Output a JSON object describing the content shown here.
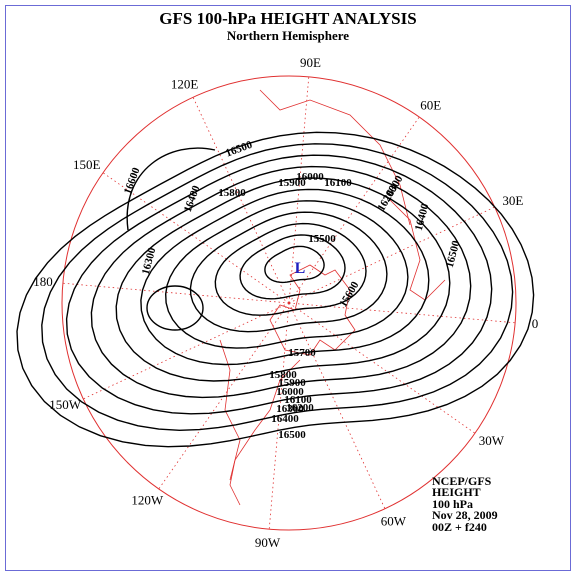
{
  "title": "GFS 100-hPa HEIGHT ANALYSIS",
  "subtitle": "Northern Hemisphere",
  "longitude_labels": [
    "0",
    "30E",
    "60E",
    "90E",
    "120E",
    "150E",
    "180",
    "150W",
    "120W",
    "90W",
    "60W",
    "30W"
  ],
  "low_marker": "L",
  "contour_labels": [
    16500,
    16600,
    16400,
    16300,
    15800,
    15900,
    16000,
    16100,
    16200,
    16300,
    16400,
    16500,
    15500,
    15600,
    15700,
    15800,
    15900,
    16000,
    16100,
    16200,
    16300,
    16400,
    16500
  ],
  "info": [
    "NCEP/GFS",
    "HEIGHT",
    "100 hPa",
    "Nov 28, 2009",
    "00Z + f240"
  ]
}
